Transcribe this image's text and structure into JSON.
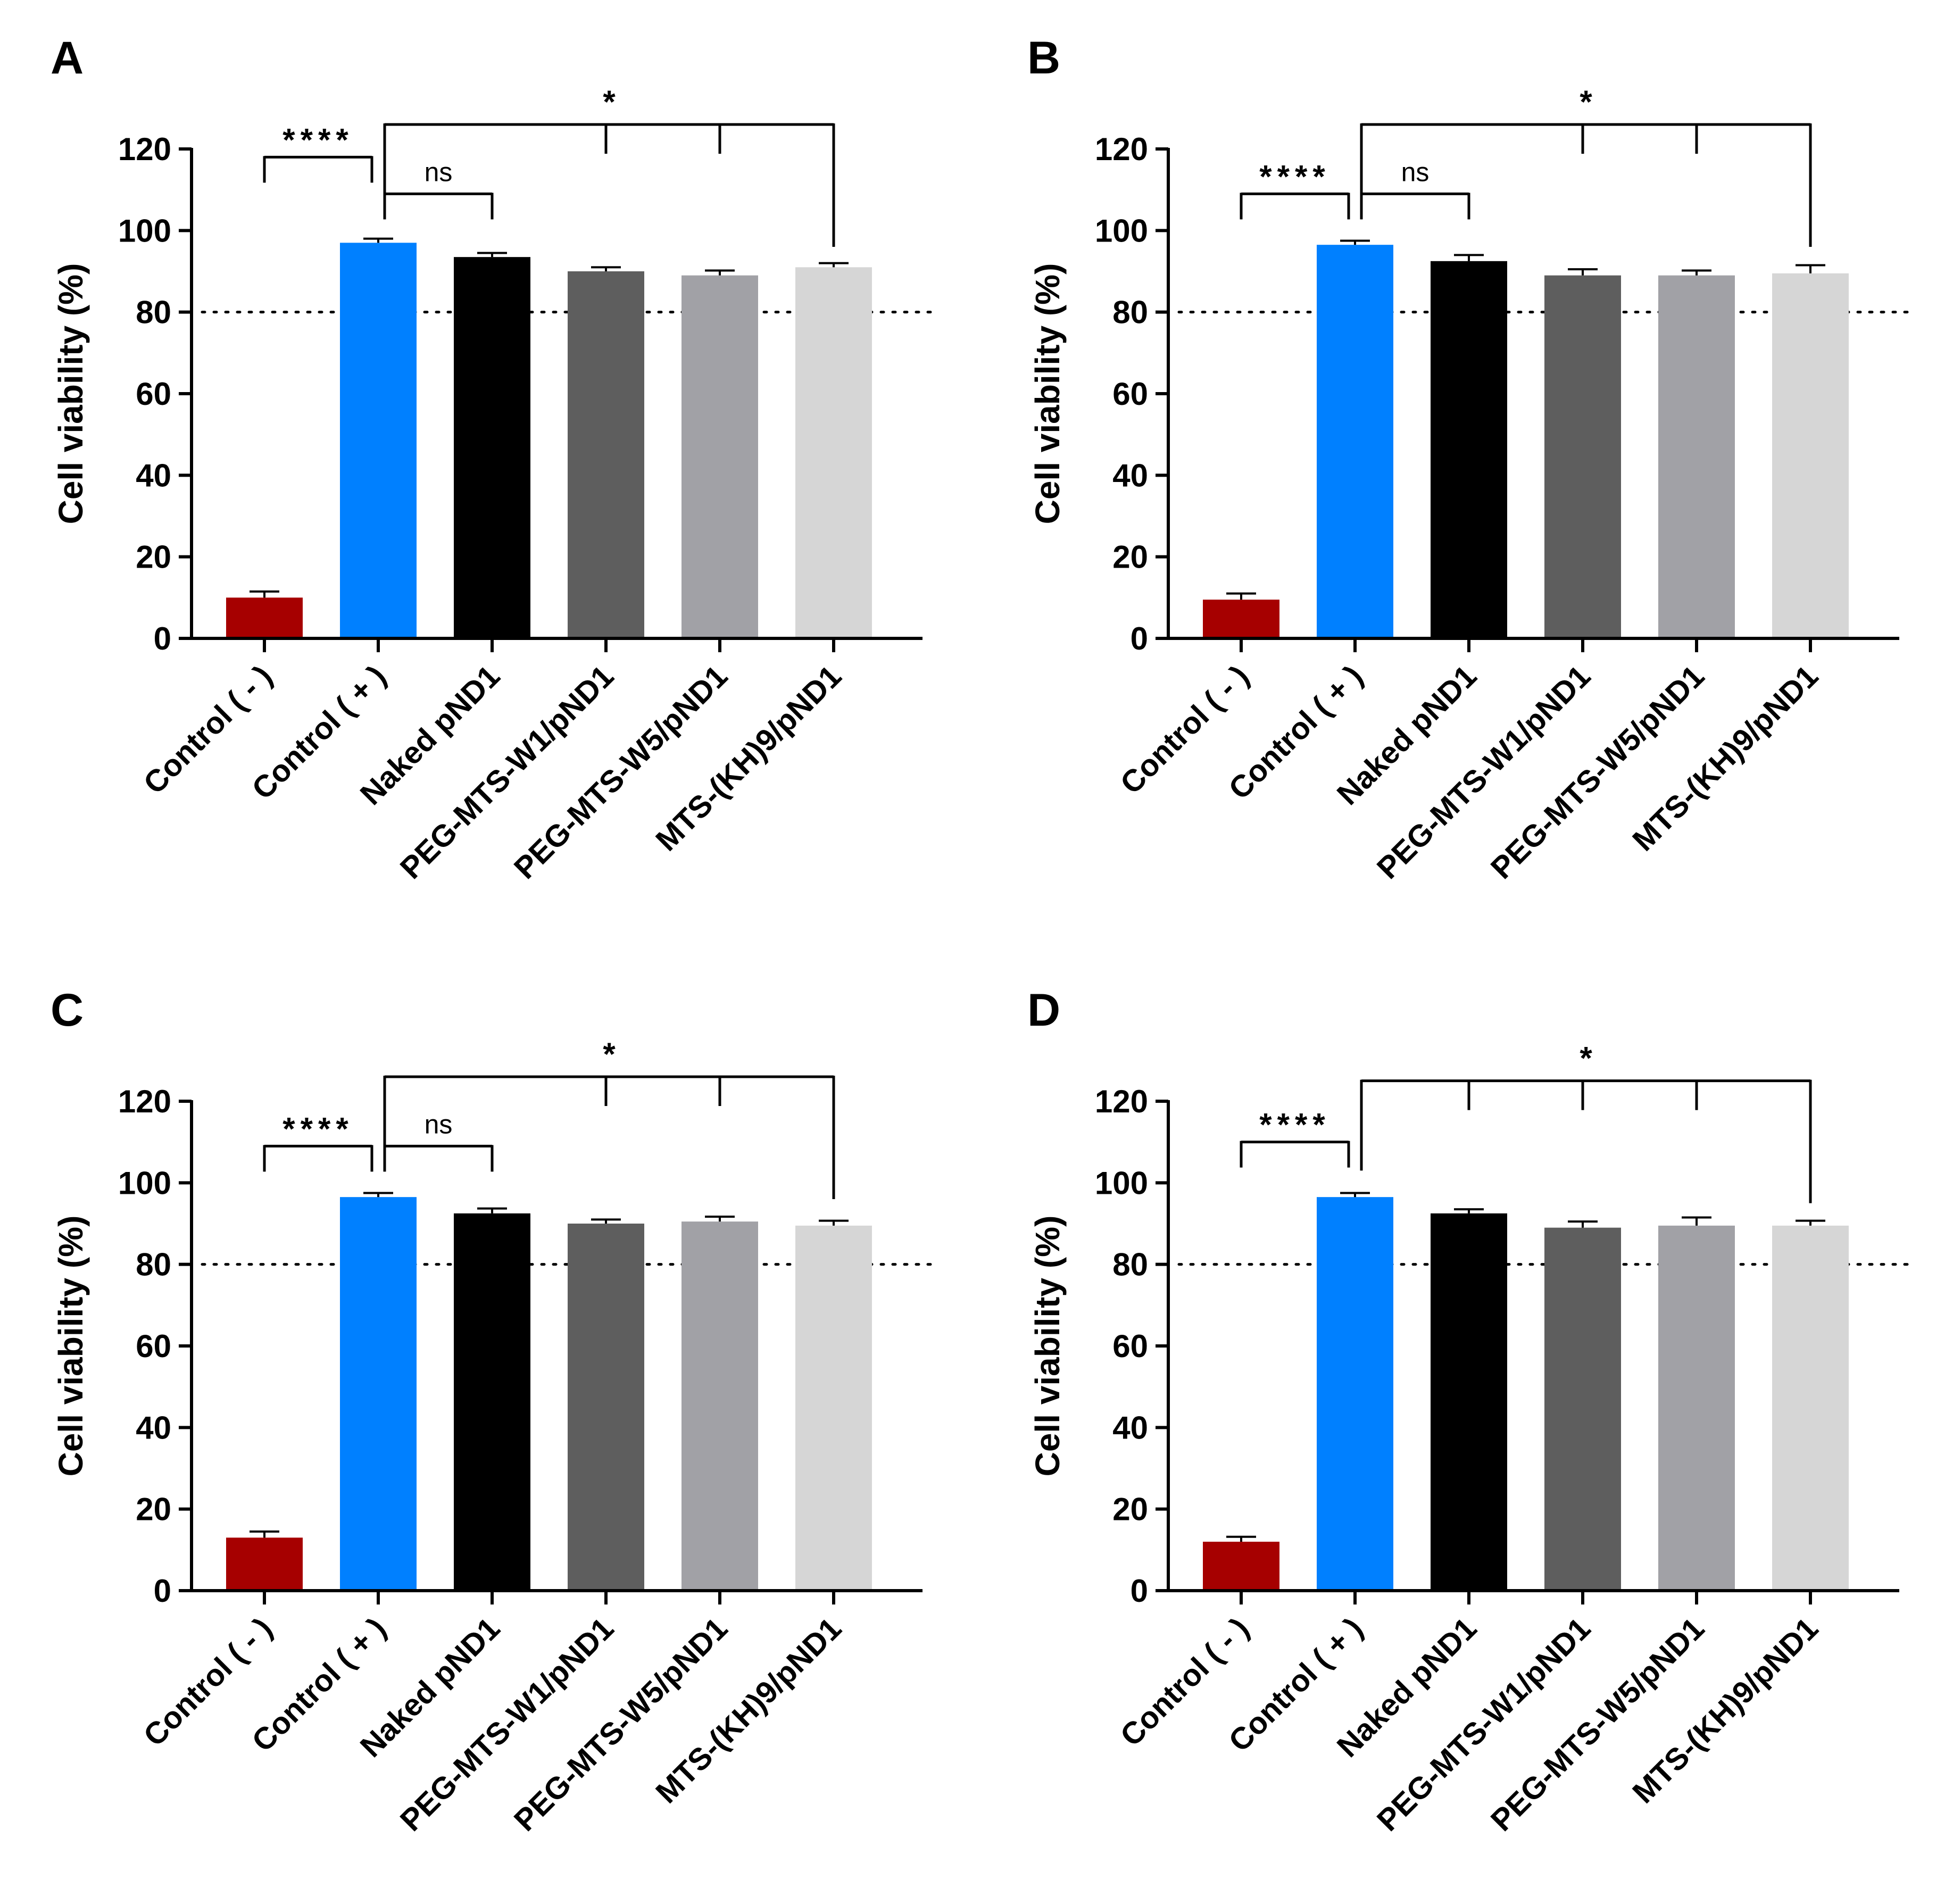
{
  "colors": {
    "bars": [
      "#a60000",
      "#0080ff",
      "#000000",
      "#5e5e5e",
      "#a1a1a6",
      "#d6d6d6"
    ],
    "axis": "#000000",
    "threshold": "#000000"
  },
  "chart_data": [
    {
      "panel": "A",
      "type": "bar",
      "ylabel": "Cell viability (%)",
      "ylim": [
        0,
        120
      ],
      "yticks": [
        0,
        20,
        40,
        60,
        80,
        100,
        120
      ],
      "threshold": 80,
      "categories": [
        "Control ( - )",
        "Control ( + )",
        "Naked pND1",
        "PEG-MTS-W1/pND1",
        "PEG-MTS-W5/pND1",
        "MTS-(KH)9/pND1"
      ],
      "values": [
        10,
        97,
        93.5,
        90,
        89,
        91
      ],
      "errors": [
        1.5,
        1,
        1,
        1,
        1.2,
        1
      ],
      "significance": [
        {
          "from": 0,
          "to": 1,
          "label": "****",
          "drops": [
            0,
            1
          ],
          "level": 118
        },
        {
          "from": 1,
          "to": 2,
          "label": "ns",
          "drops": [
            1,
            2
          ],
          "level": 109
        },
        {
          "from": 1,
          "to": 5,
          "label": "*",
          "drops": [
            1,
            3,
            4,
            5
          ],
          "level": 126
        }
      ]
    },
    {
      "panel": "B",
      "type": "bar",
      "ylabel": "Cell viability (%)",
      "ylim": [
        0,
        120
      ],
      "yticks": [
        0,
        20,
        40,
        60,
        80,
        100,
        120
      ],
      "threshold": 80,
      "categories": [
        "Control ( - )",
        "Control ( + )",
        "Naked pND1",
        "PEG-MTS-W1/pND1",
        "PEG-MTS-W5/pND1",
        "MTS-(KH)9/pND1"
      ],
      "values": [
        9.5,
        96.5,
        92.5,
        89,
        89,
        89.5
      ],
      "errors": [
        1.5,
        1,
        1.5,
        1.5,
        1.2,
        2
      ],
      "significance": [
        {
          "from": 0,
          "to": 1,
          "label": "****",
          "drops": [
            0,
            1
          ],
          "level": 109
        },
        {
          "from": 1,
          "to": 2,
          "label": "ns",
          "drops": [
            1,
            2
          ],
          "level": 109
        },
        {
          "from": 1,
          "to": 5,
          "label": "*",
          "drops": [
            1,
            3,
            4,
            5
          ],
          "level": 126
        }
      ]
    },
    {
      "panel": "C",
      "type": "bar",
      "ylabel": "Cell viability (%)",
      "ylim": [
        0,
        120
      ],
      "yticks": [
        0,
        20,
        40,
        60,
        80,
        100,
        120
      ],
      "threshold": 80,
      "categories": [
        "Control ( - )",
        "Control ( + )",
        "Naked pND1",
        "PEG-MTS-W1/pND1",
        "PEG-MTS-W5/pND1",
        "MTS-(KH)9/pND1"
      ],
      "values": [
        13,
        96.5,
        92.5,
        90,
        90.5,
        89.5
      ],
      "errors": [
        1.5,
        1,
        1.2,
        1,
        1.2,
        1.2
      ],
      "significance": [
        {
          "from": 0,
          "to": 1,
          "label": "****",
          "drops": [
            0,
            1
          ],
          "level": 109
        },
        {
          "from": 1,
          "to": 2,
          "label": "ns",
          "drops": [
            1,
            2
          ],
          "level": 109
        },
        {
          "from": 1,
          "to": 5,
          "label": "*",
          "drops": [
            1,
            3,
            4,
            5
          ],
          "level": 126
        }
      ]
    },
    {
      "panel": "D",
      "type": "bar",
      "ylabel": "Cell viability (%)",
      "ylim": [
        0,
        120
      ],
      "yticks": [
        0,
        20,
        40,
        60,
        80,
        100,
        120
      ],
      "threshold": 80,
      "categories": [
        "Control ( - )",
        "Control ( + )",
        "Naked pND1",
        "PEG-MTS-W1/pND1",
        "PEG-MTS-W5/pND1",
        "MTS-(KH)9/pND1"
      ],
      "values": [
        12,
        96.5,
        92.5,
        89,
        89.5,
        89.5
      ],
      "errors": [
        1.2,
        1,
        1,
        1.5,
        2,
        1.2
      ],
      "significance": [
        {
          "from": 0,
          "to": 1,
          "label": "****",
          "drops": [
            0,
            1
          ],
          "level": 110
        },
        {
          "from": 1,
          "to": 5,
          "label": "*",
          "drops": [
            1,
            2,
            3,
            4,
            5
          ],
          "level": 125
        }
      ]
    }
  ]
}
